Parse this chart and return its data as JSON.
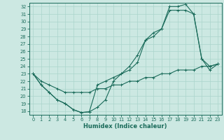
{
  "xlabel": "Humidex (Indice chaleur)",
  "bg_color": "#cce8e2",
  "grid_color": "#aad4cc",
  "line_color": "#1a6b5a",
  "xlim": [
    -0.5,
    23.5
  ],
  "ylim": [
    17.5,
    32.5
  ],
  "xticks": [
    0,
    1,
    2,
    3,
    4,
    5,
    6,
    7,
    8,
    9,
    10,
    11,
    12,
    13,
    14,
    15,
    16,
    17,
    18,
    19,
    20,
    21,
    22,
    23
  ],
  "yticks": [
    18,
    19,
    20,
    21,
    22,
    23,
    24,
    25,
    26,
    27,
    28,
    29,
    30,
    31,
    32
  ],
  "line_flat_x": [
    0,
    1,
    2,
    3,
    4,
    5,
    6,
    7,
    8,
    9,
    10,
    11,
    12,
    13,
    14,
    15,
    16,
    17,
    18,
    19,
    20,
    21,
    22,
    23
  ],
  "line_flat_y": [
    23.0,
    22.0,
    21.5,
    21.0,
    20.5,
    20.5,
    20.5,
    20.5,
    21.0,
    21.0,
    21.5,
    21.5,
    22.0,
    22.0,
    22.5,
    22.5,
    23.0,
    23.0,
    23.5,
    23.5,
    23.5,
    24.0,
    24.0,
    24.3
  ],
  "line_mid_x": [
    0,
    1,
    2,
    3,
    4,
    5,
    6,
    7,
    8,
    9,
    10,
    11,
    12,
    13,
    14,
    15,
    16,
    17,
    18,
    19,
    20,
    21,
    22,
    23
  ],
  "line_mid_y": [
    23.0,
    21.5,
    20.5,
    19.5,
    19.0,
    18.2,
    17.8,
    17.9,
    18.5,
    19.5,
    22.0,
    23.0,
    23.5,
    24.5,
    27.5,
    28.0,
    29.0,
    31.5,
    31.5,
    31.5,
    31.0,
    25.0,
    24.0,
    24.3
  ],
  "line_top_x": [
    0,
    1,
    2,
    3,
    4,
    5,
    6,
    7,
    8,
    9,
    10,
    11,
    12,
    13,
    14,
    15,
    16,
    17,
    18,
    19,
    20,
    21,
    22,
    23
  ],
  "line_top_y": [
    23.0,
    21.5,
    20.5,
    19.5,
    19.0,
    18.2,
    17.8,
    17.9,
    21.5,
    22.0,
    22.5,
    23.0,
    24.0,
    25.5,
    27.5,
    28.5,
    29.0,
    32.0,
    32.0,
    32.3,
    31.0,
    25.0,
    23.5,
    24.3
  ]
}
